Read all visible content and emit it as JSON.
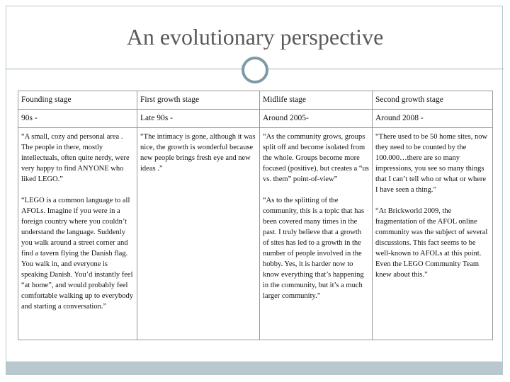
{
  "title": "An evolutionary perspective",
  "table": {
    "header": [
      "Founding stage",
      "First growth stage",
      "Midlife stage",
      "Second growth stage"
    ],
    "periods": [
      "90s -",
      "Late 90s -",
      "Around 2005-",
      "Around 2008 -"
    ],
    "quotes": [
      [
        "“A small, cozy and personal area . The people in there, mostly intellectuals, often quite nerdy, were very happy to find ANYONE who liked LEGO.”",
        "“LEGO is a common language to all AFOLs. Imagine if you were in a foreign country where you couldn’t understand the language. Suddenly you walk around a street corner and find a tavern flying the Danish flag. You walk in, and everyone is speaking Danish. You’d instantly feel “at home”, and would probably feel comfortable walking up to everybody and starting a conversation.”"
      ],
      [
        "“The intimacy is gone, although it was nice, the growth is wonderful because new people brings fresh eye and new ideas .”"
      ],
      [
        "“As the community grows, groups split off and become isolated from the whole. Groups become more focused (positive), but creates a “us vs. them” point-of-view”",
        "“As to the splitting of the community, this is a topic that has been covered many times in the past. I truly believe that a growth of sites has led to a growth in the number of people involved in the hobby. Yes, it is harder now to know everything that’s happening in the community, but it’s a much larger community.”"
      ],
      [
        "“There used to be 50 home sites, now they need to be counted by the 100.000…there are so many impressions, you see so many things that I can’t tell who or what or where I have seen a thing.”",
        "“At Brickworld 2009, the fragmentation of the AFOL online community was the subject of several discussions. This fact seems to be well-known to AFOLs at this point. Even the LEGO Community Team knew about this.”"
      ]
    ]
  }
}
